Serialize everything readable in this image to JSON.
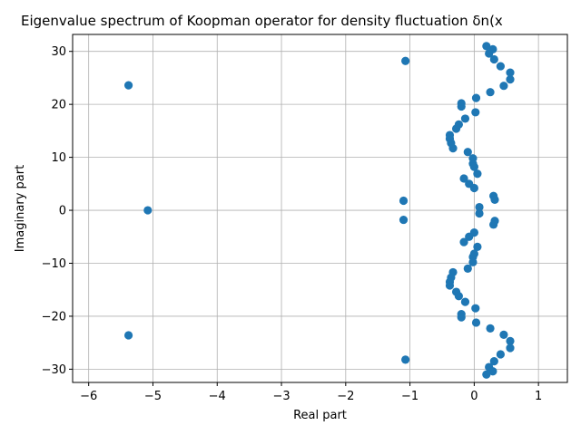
{
  "chart_data": {
    "type": "scatter",
    "title": "Eigenvalue spectrum of Koopman operator for density fluctuation δn(x",
    "xlabel": "Real part",
    "ylabel": "Imaginary part",
    "xlim": [
      -6.25,
      1.45
    ],
    "ylim": [
      -32.5,
      33.2
    ],
    "xticks": [
      -6,
      -5,
      -4,
      -3,
      -2,
      -1,
      0,
      1
    ],
    "xtick_labels": [
      "−6",
      "−5",
      "−4",
      "−3",
      "−2",
      "−1",
      "0",
      "1"
    ],
    "yticks": [
      -30,
      -20,
      -10,
      0,
      10,
      20,
      30
    ],
    "ytick_labels": [
      "−30",
      "−20",
      "−10",
      "0",
      "10",
      "20",
      "30"
    ],
    "grid": true,
    "marker_color": "#1f77b4",
    "points": [
      {
        "x": -5.08,
        "y": 0.0
      },
      {
        "x": -5.38,
        "y": 23.6
      },
      {
        "x": -5.38,
        "y": -23.6
      },
      {
        "x": -1.07,
        "y": 28.2
      },
      {
        "x": -1.07,
        "y": -28.2
      },
      {
        "x": -1.1,
        "y": 1.8
      },
      {
        "x": -1.1,
        "y": -1.8
      },
      {
        "x": 0.08,
        "y": 0.6
      },
      {
        "x": 0.08,
        "y": -0.6
      },
      {
        "x": 0.3,
        "y": 2.7
      },
      {
        "x": 0.32,
        "y": 2.0
      },
      {
        "x": 0.32,
        "y": -2.0
      },
      {
        "x": 0.3,
        "y": -2.7
      },
      {
        "x": 0.0,
        "y": 4.2
      },
      {
        "x": -0.08,
        "y": 5.0
      },
      {
        "x": -0.16,
        "y": 6.0
      },
      {
        "x": 0.0,
        "y": -4.2
      },
      {
        "x": -0.08,
        "y": -5.0
      },
      {
        "x": -0.16,
        "y": -6.0
      },
      {
        "x": 0.05,
        "y": 6.9
      },
      {
        "x": 0.0,
        "y": 8.2
      },
      {
        "x": -0.02,
        "y": 8.8
      },
      {
        "x": -0.02,
        "y": 9.8
      },
      {
        "x": 0.05,
        "y": -6.9
      },
      {
        "x": 0.0,
        "y": -8.2
      },
      {
        "x": -0.02,
        "y": -8.8
      },
      {
        "x": -0.02,
        "y": -9.8
      },
      {
        "x": -0.1,
        "y": 11.0
      },
      {
        "x": -0.1,
        "y": -11.0
      },
      {
        "x": -0.33,
        "y": 11.7
      },
      {
        "x": -0.36,
        "y": 12.7
      },
      {
        "x": -0.38,
        "y": 13.5
      },
      {
        "x": -0.38,
        "y": 14.2
      },
      {
        "x": -0.33,
        "y": -11.7
      },
      {
        "x": -0.36,
        "y": -12.7
      },
      {
        "x": -0.38,
        "y": -13.5
      },
      {
        "x": -0.38,
        "y": -14.2
      },
      {
        "x": -0.28,
        "y": 15.4
      },
      {
        "x": -0.24,
        "y": 16.2
      },
      {
        "x": -0.28,
        "y": -15.4
      },
      {
        "x": -0.24,
        "y": -16.2
      },
      {
        "x": -0.14,
        "y": 17.3
      },
      {
        "x": -0.14,
        "y": -17.3
      },
      {
        "x": 0.02,
        "y": 18.5
      },
      {
        "x": 0.02,
        "y": -18.5
      },
      {
        "x": -0.2,
        "y": 19.6
      },
      {
        "x": -0.2,
        "y": 20.2
      },
      {
        "x": -0.2,
        "y": -19.6
      },
      {
        "x": -0.2,
        "y": -20.2
      },
      {
        "x": 0.03,
        "y": 21.2
      },
      {
        "x": 0.03,
        "y": -21.2
      },
      {
        "x": 0.25,
        "y": 22.3
      },
      {
        "x": 0.25,
        "y": -22.3
      },
      {
        "x": 0.46,
        "y": 23.5
      },
      {
        "x": 0.46,
        "y": -23.5
      },
      {
        "x": 0.56,
        "y": 24.7
      },
      {
        "x": 0.56,
        "y": 26.0
      },
      {
        "x": 0.56,
        "y": -24.7
      },
      {
        "x": 0.56,
        "y": -26.0
      },
      {
        "x": 0.41,
        "y": 27.2
      },
      {
        "x": 0.41,
        "y": -27.2
      },
      {
        "x": 0.31,
        "y": 28.5
      },
      {
        "x": 0.31,
        "y": -28.5
      },
      {
        "x": 0.23,
        "y": 29.6
      },
      {
        "x": 0.29,
        "y": 30.4
      },
      {
        "x": 0.19,
        "y": 31.0
      },
      {
        "x": 0.23,
        "y": -29.6
      },
      {
        "x": 0.29,
        "y": -30.4
      },
      {
        "x": 0.19,
        "y": -31.0
      }
    ]
  }
}
